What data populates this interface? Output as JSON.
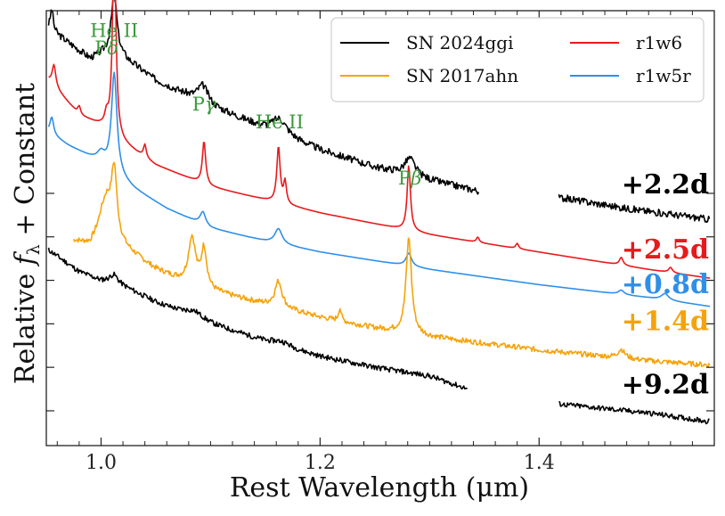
{
  "chart_data": {
    "type": "line",
    "xlabel": "Rest Wavelength (μm)",
    "ylabel_main": "Relative ",
    "ylabel_math": "f",
    "ylabel_sub": "λ",
    "ylabel_tail": " + Constant",
    "xlim": [
      0.95,
      1.56
    ],
    "ylim": [
      0,
      10
    ],
    "xticks": [
      1.0,
      1.2,
      1.4
    ],
    "xtick_labels": [
      "1.0",
      "1.2",
      "1.4"
    ],
    "yticks": [
      0.8,
      1.8,
      2.8,
      3.8,
      4.8,
      5.8
    ],
    "grid": false,
    "legend": {
      "placement": "top-right",
      "entries": [
        {
          "label": "SN 2024ggi",
          "color": "#000000"
        },
        {
          "label": "SN 2017ahn",
          "color": "#f5a30a"
        },
        {
          "label": "r1w6",
          "color": "#e8191c"
        },
        {
          "label": "r1w5r",
          "color": "#2f8fe8"
        }
      ]
    },
    "line_annotations": [
      {
        "label": "He II",
        "x": 1.012,
        "y": 9.4,
        "color": "#3b9a3b"
      },
      {
        "label": "Pδ",
        "x": 1.005,
        "y": 9.0,
        "color": "#3b9a3b",
        "math": "δ",
        "base": "P"
      },
      {
        "label": "Pγ",
        "x": 1.094,
        "y": 7.7,
        "color": "#3b9a3b",
        "math": "γ",
        "base": "P"
      },
      {
        "label": "He II",
        "x": 1.163,
        "y": 7.3,
        "color": "#3b9a3b"
      },
      {
        "label": "Pβ",
        "x": 1.282,
        "y": 6.0,
        "color": "#3b9a3b",
        "math": "β",
        "base": "P"
      }
    ],
    "epoch_labels": [
      {
        "label": "+2.2d",
        "y": 5.8,
        "color": "#000000"
      },
      {
        "label": "+2.5d",
        "y": 4.3,
        "color": "#e8191c"
      },
      {
        "label": "+0.8d",
        "y": 3.5,
        "color": "#2f8fe8"
      },
      {
        "label": "+1.4d",
        "y": 2.65,
        "color": "#f5a30a"
      },
      {
        "label": "+9.2d",
        "y": 1.2,
        "color": "#000000"
      }
    ],
    "series": [
      {
        "name": "SN 2024ggi (+2.2d)",
        "color": "#000000",
        "noise": 0.08,
        "seed": 3,
        "segments": [
          [
            0.952,
            1.345
          ],
          [
            1.418,
            1.556
          ]
        ],
        "continuum": [
          [
            0.952,
            9.6
          ],
          [
            0.99,
            8.9
          ],
          [
            1.0,
            9.0
          ],
          [
            1.01,
            9.1
          ],
          [
            1.05,
            8.4
          ],
          [
            1.1,
            7.8
          ],
          [
            1.15,
            7.3
          ],
          [
            1.2,
            6.8
          ],
          [
            1.25,
            6.4
          ],
          [
            1.3,
            6.1
          ],
          [
            1.345,
            5.85
          ],
          [
            1.42,
            5.7
          ],
          [
            1.48,
            5.45
          ],
          [
            1.556,
            5.2
          ]
        ],
        "peaks": [
          [
            0.955,
            0.5,
            0.0015
          ],
          [
            1.012,
            1.3,
            0.003
          ],
          [
            1.093,
            0.4,
            0.006
          ],
          [
            1.163,
            0.35,
            0.008
          ],
          [
            1.282,
            0.4,
            0.006
          ]
        ]
      },
      {
        "name": "r1w6 (+2.5d)",
        "color": "#e8191c",
        "noise": 0.0,
        "seed": 0,
        "segments": [
          [
            0.952,
            1.556
          ]
        ],
        "continuum": [
          [
            0.952,
            8.4
          ],
          [
            0.98,
            7.6
          ],
          [
            1.0,
            7.35
          ],
          [
            1.02,
            6.95
          ],
          [
            1.05,
            6.45
          ],
          [
            1.1,
            5.95
          ],
          [
            1.15,
            5.65
          ],
          [
            1.2,
            5.35
          ],
          [
            1.25,
            5.1
          ],
          [
            1.3,
            4.85
          ],
          [
            1.4,
            4.45
          ],
          [
            1.5,
            4.05
          ],
          [
            1.556,
            3.85
          ]
        ],
        "peaks": [
          [
            0.957,
            0.5,
            0.002
          ],
          [
            0.98,
            0.2,
            0.0015
          ],
          [
            1.005,
            0.3,
            0.002
          ],
          [
            1.012,
            4.7,
            0.0018
          ],
          [
            1.04,
            0.3,
            0.0015
          ],
          [
            1.094,
            1.0,
            0.0018
          ],
          [
            1.162,
            1.3,
            0.0018
          ],
          [
            1.168,
            0.5,
            0.0015
          ],
          [
            1.281,
            1.5,
            0.0018
          ],
          [
            1.344,
            0.12,
            0.0015
          ],
          [
            1.38,
            0.12,
            0.0015
          ],
          [
            1.475,
            0.18,
            0.002
          ],
          [
            1.52,
            0.12,
            0.002
          ]
        ]
      },
      {
        "name": "r1w5r (+0.8d)",
        "color": "#2f8fe8",
        "noise": 0.0,
        "seed": 0,
        "segments": [
          [
            0.952,
            1.556
          ]
        ],
        "continuum": [
          [
            0.952,
            7.2
          ],
          [
            0.97,
            6.9
          ],
          [
            1.0,
            6.5
          ],
          [
            1.03,
            5.9
          ],
          [
            1.06,
            5.45
          ],
          [
            1.1,
            5.0
          ],
          [
            1.15,
            4.7
          ],
          [
            1.2,
            4.45
          ],
          [
            1.25,
            4.25
          ],
          [
            1.3,
            4.05
          ],
          [
            1.4,
            3.7
          ],
          [
            1.5,
            3.4
          ],
          [
            1.556,
            3.2
          ]
        ],
        "peaks": [
          [
            0.955,
            0.4,
            0.002
          ],
          [
            1.0,
            0.2,
            0.004
          ],
          [
            1.012,
            2.3,
            0.003
          ],
          [
            1.093,
            0.3,
            0.003
          ],
          [
            1.162,
            0.35,
            0.004
          ],
          [
            1.281,
            0.3,
            0.003
          ],
          [
            1.475,
            0.1,
            0.003
          ],
          [
            1.515,
            0.15,
            0.004
          ]
        ]
      },
      {
        "name": "SN 2017ahn (+1.4d)",
        "color": "#f5a30a",
        "noise": 0.06,
        "seed": 7,
        "segments": [
          [
            0.975,
            1.556
          ]
        ],
        "continuum": [
          [
            0.975,
            4.7
          ],
          [
            0.99,
            4.6
          ],
          [
            1.0,
            4.9
          ],
          [
            1.02,
            4.55
          ],
          [
            1.05,
            4.05
          ],
          [
            1.08,
            3.7
          ],
          [
            1.1,
            3.55
          ],
          [
            1.15,
            3.25
          ],
          [
            1.2,
            2.95
          ],
          [
            1.25,
            2.7
          ],
          [
            1.3,
            2.5
          ],
          [
            1.4,
            2.2
          ],
          [
            1.5,
            1.95
          ],
          [
            1.556,
            1.85
          ]
        ],
        "peaks": [
          [
            1.005,
            0.8,
            0.006
          ],
          [
            1.012,
            1.5,
            0.003
          ],
          [
            1.083,
            1.1,
            0.004
          ],
          [
            1.094,
            0.9,
            0.003
          ],
          [
            1.162,
            0.6,
            0.004
          ],
          [
            1.218,
            0.3,
            0.0015
          ],
          [
            1.281,
            2.2,
            0.003
          ],
          [
            1.475,
            0.2,
            0.004
          ]
        ]
      },
      {
        "name": "SN 2024ggi (+9.2d)",
        "color": "#000000",
        "noise": 0.06,
        "seed": 11,
        "segments": [
          [
            0.952,
            1.335
          ],
          [
            1.418,
            1.556
          ]
        ],
        "continuum": [
          [
            0.952,
            4.5
          ],
          [
            0.98,
            4.0
          ],
          [
            1.0,
            3.8
          ],
          [
            1.01,
            3.8
          ],
          [
            1.05,
            3.3
          ],
          [
            1.1,
            2.8
          ],
          [
            1.15,
            2.4
          ],
          [
            1.2,
            2.05
          ],
          [
            1.25,
            1.8
          ],
          [
            1.3,
            1.6
          ],
          [
            1.335,
            1.3
          ],
          [
            1.42,
            0.95
          ],
          [
            1.5,
            0.75
          ],
          [
            1.556,
            0.55
          ]
        ],
        "peaks": [
          [
            1.012,
            0.15,
            0.004
          ],
          [
            1.085,
            0.15,
            0.01
          ],
          [
            1.165,
            0.1,
            0.01
          ]
        ]
      }
    ]
  }
}
